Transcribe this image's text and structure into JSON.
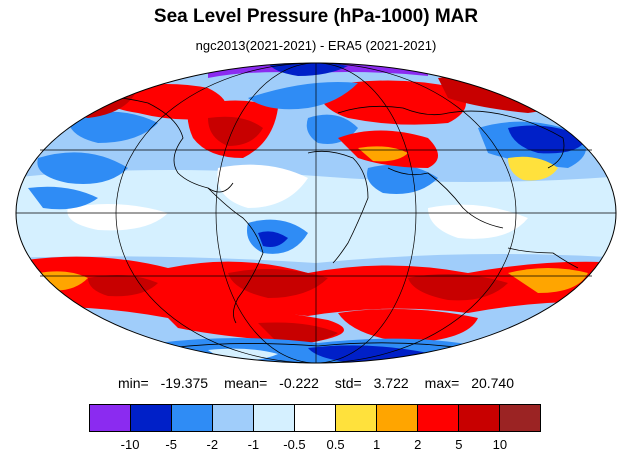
{
  "title": "Sea Level Pressure (hPa-1000) MAR",
  "subtitle": "ngc2013(2021-2021) - ERA5 (2021-2021)",
  "stats": [
    {
      "label": "min=",
      "value": "-19.375"
    },
    {
      "label": "mean=",
      "value": "-0.222"
    },
    {
      "label": "std=",
      "value": "3.722"
    },
    {
      "label": "max=",
      "value": "20.740"
    }
  ],
  "colorbar": {
    "colors": [
      "#8b2bf0",
      "#0020c8",
      "#2f8cf5",
      "#a0cdfa",
      "#d5f0ff",
      "#ffffff",
      "#ffe13c",
      "#ffa500",
      "#ff0000",
      "#c80000",
      "#9b2323"
    ],
    "labels": [
      "-10",
      "-5",
      "-2",
      "-1",
      "-0.5",
      "0.5",
      "1",
      "2",
      "5",
      "10"
    ]
  },
  "map": {
    "projection": "Mollweide",
    "grid": true,
    "coastlines": true
  }
}
